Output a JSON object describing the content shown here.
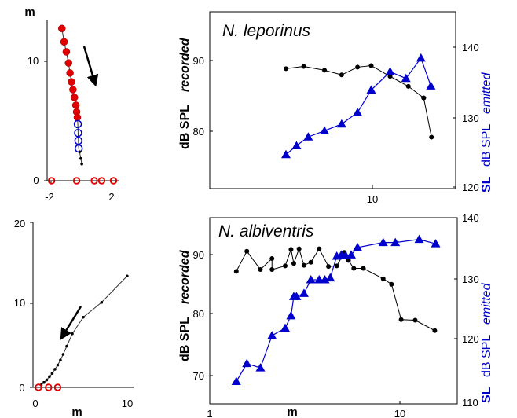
{
  "chart_data": [
    {
      "panel": "top-left",
      "type": "scatter",
      "title": "",
      "xlabel": "",
      "ylabel": "m",
      "xlim": [
        -2.5,
        2.4
      ],
      "ylim": [
        0,
        14.5
      ],
      "xticks": [
        "-2",
        "2"
      ],
      "yticks": [
        "0",
        "10"
      ],
      "arrow": "pointing down along the track",
      "series": [
        {
          "marker": "filled-red-circle",
          "x": [
            -1.5,
            -1.35,
            -1.2,
            -1.05,
            -0.95,
            -0.85,
            -0.75,
            -0.65,
            -0.55,
            -0.5,
            -0.45
          ],
          "y": [
            13.7,
            12.5,
            11.6,
            10.6,
            9.7,
            8.9,
            8.2,
            7.5,
            6.8,
            6.2,
            5.7
          ]
        },
        {
          "marker": "open-blue-circle",
          "x": [
            -0.42,
            -0.4,
            -0.38,
            -0.36
          ],
          "y": [
            5.1,
            4.3,
            3.6,
            2.9
          ]
        },
        {
          "marker": "small-black-dot",
          "x": [
            -0.3,
            -0.22,
            -0.15
          ],
          "y": [
            2.6,
            2.0,
            1.5
          ]
        },
        {
          "marker": "open-red-circle-on-axis",
          "x": [
            -2.2,
            -0.5,
            0.7,
            1.2,
            2.0
          ],
          "y": [
            0,
            0,
            0,
            0,
            0
          ]
        }
      ]
    },
    {
      "panel": "top-right",
      "type": "line",
      "title": "N. leporinus",
      "xlabel": "",
      "ylabel_left_bold": "dB SPL",
      "ylabel_left_italic": "recorded",
      "ylabel_right_bold": "SL",
      "ylabel_right_plain": "dB SPL",
      "ylabel_right_italic": "emitted",
      "x_scale": "log",
      "xlim": [
        1.6,
        20
      ],
      "ylim_left": [
        73,
        96
      ],
      "ylim_right": [
        120,
        146
      ],
      "xticks": [
        "10"
      ],
      "yticks_left": [
        "80",
        "90"
      ],
      "yticks_right": [
        "120",
        "130",
        "140"
      ],
      "series": [
        {
          "axis": "left",
          "color": "#000000",
          "marker": "circle",
          "x": [
            3.5,
            4.2,
            5.2,
            6.2,
            7.3,
            8.4,
            10.2,
            12.3,
            14.4
          ],
          "y": [
            88.6,
            88.9,
            88.4,
            87.8,
            88.8,
            89.0,
            87.6,
            86.3,
            84.8
          ]
        },
        {
          "axis": "left",
          "color": "#000000",
          "marker": "circle",
          "x": [
            14.4,
            15.6
          ],
          "y": [
            84.8,
            79.7
          ]
        },
        {
          "axis": "right",
          "color": "#0000cc",
          "marker": "triangle",
          "x": [
            3.5,
            3.9,
            4.4,
            5.2,
            6.2,
            7.3,
            8.4,
            10.2,
            12.0,
            14.0,
            15.5
          ],
          "y": [
            125,
            126.3,
            127.6,
            128.5,
            129.5,
            131.2,
            134.5,
            137.2,
            136.2,
            139.2,
            135.1
          ]
        }
      ]
    },
    {
      "panel": "bottom-left",
      "type": "scatter",
      "title": "",
      "xlabel": "m",
      "ylabel": "",
      "xlim": [
        -0.5,
        10.5
      ],
      "ylim": [
        0,
        20
      ],
      "xticks": [
        "0",
        "10"
      ],
      "yticks": [
        "0",
        "10",
        "20"
      ],
      "arrow": "pointing toward the origin along the track",
      "series": [
        {
          "marker": "small-black-dot",
          "x": [
            9.8,
            7.0,
            5.0,
            3.8,
            3.2,
            2.8,
            2.5,
            2.2,
            1.9,
            1.6,
            1.3,
            1.0,
            0.7,
            0.4
          ],
          "y": [
            13.5,
            10.3,
            8.5,
            6.5,
            5.0,
            4.0,
            3.3,
            2.7,
            2.2,
            1.7,
            1.3,
            0.9,
            0.6,
            0.3
          ]
        },
        {
          "marker": "open-red-circle-on-axis",
          "x": [
            0.1,
            1.2,
            2.2
          ],
          "y": [
            0,
            0,
            0
          ]
        }
      ]
    },
    {
      "panel": "bottom-right",
      "type": "line",
      "title": "N. albiventris",
      "xlabel": "m",
      "ylabel_left_bold": "dB SPL",
      "ylabel_left_italic": "recorded",
      "ylabel_right_bold": "SL",
      "ylabel_right_plain": "dB SPL",
      "ylabel_right_italic": "emitted",
      "x_scale": "log",
      "xlim": [
        1,
        23
      ],
      "ylim_left": [
        66,
        96.5
      ],
      "ylim_right": [
        110,
        140
      ],
      "xticks": [
        "1",
        "10"
      ],
      "yticks_left": [
        "70",
        "80",
        "90"
      ],
      "yticks_right": [
        "110",
        "120",
        "130",
        "140"
      ],
      "series": [
        {
          "axis": "left",
          "color": "#000000",
          "marker": "circle",
          "x": [
            1.4,
            1.6,
            1.9,
            2.2,
            2.2,
            2.6,
            2.8,
            2.9,
            3.1,
            3.3,
            3.6,
            4.0,
            4.5,
            5.0,
            5.5,
            5.8,
            6.2,
            7.0,
            9.0,
            10.0,
            11.3,
            13.5,
            17.3
          ],
          "y": [
            87.7,
            91.0,
            88.0,
            89.8,
            88.0,
            88.6,
            91.3,
            89.0,
            91.4,
            88.7,
            89.2,
            91.4,
            88.5,
            88.6,
            90.8,
            89.5,
            88.2,
            88.2,
            86.5,
            85.6,
            79.8,
            79.7,
            78.0
          ]
        },
        {
          "axis": "right",
          "color": "#0000cc",
          "marker": "triangle",
          "x": [
            1.4,
            1.6,
            1.9,
            2.2,
            2.6,
            2.8,
            2.9,
            3.0,
            3.3,
            3.6,
            4.0,
            4.3,
            4.6,
            5.0,
            5.3,
            5.6,
            6.0,
            6.5,
            9.0,
            10.5,
            14.2,
            17.5
          ],
          "y": [
            113.6,
            116.5,
            115.8,
            121.0,
            122.2,
            124.2,
            127.3,
            127.3,
            127.8,
            130.0,
            130.0,
            130.0,
            130.3,
            133.8,
            134.0,
            133.9,
            134.0,
            135.2,
            136.0,
            136.0,
            136.5,
            135.8
          ]
        }
      ]
    }
  ]
}
